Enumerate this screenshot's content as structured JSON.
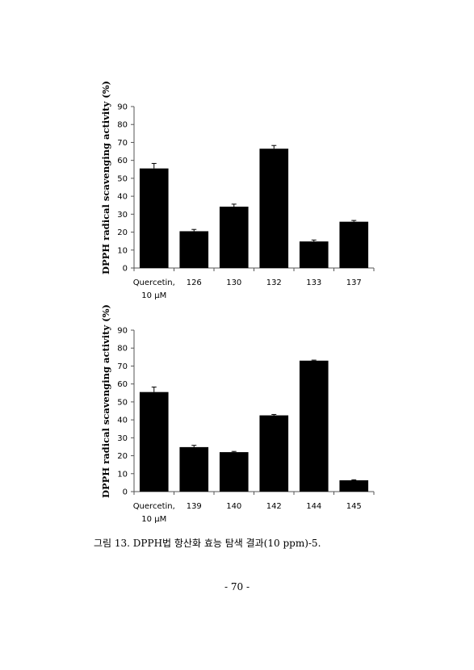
{
  "chart_data": [
    {
      "type": "bar",
      "title": "",
      "xlabel": "",
      "ylabel": "DPPH radical scavenging activity (%)",
      "ylim": [
        0,
        90
      ],
      "yticks": [
        0,
        10,
        20,
        30,
        40,
        50,
        60,
        70,
        80,
        90
      ],
      "categories": [
        [
          "Quercetin,",
          "10 μM"
        ],
        [
          "126"
        ],
        [
          "130"
        ],
        [
          "132"
        ],
        [
          "133"
        ],
        [
          "137"
        ]
      ],
      "values": [
        55.5,
        20.5,
        34.2,
        66.5,
        14.8,
        25.8
      ],
      "errors": [
        2.8,
        1.0,
        1.4,
        1.8,
        0.8,
        0.7
      ],
      "bar_color": "#000000",
      "grid": false,
      "legend": "none"
    },
    {
      "type": "bar",
      "title": "",
      "xlabel": "",
      "ylabel": "DPPH radical scavenging activity (%)",
      "ylim": [
        0,
        90
      ],
      "yticks": [
        0,
        10,
        20,
        30,
        40,
        50,
        60,
        70,
        80,
        90
      ],
      "categories": [
        [
          "Quercetin,",
          "10 μM"
        ],
        [
          "139"
        ],
        [
          "140"
        ],
        [
          "142"
        ],
        [
          "144"
        ],
        [
          "145"
        ]
      ],
      "values": [
        55.5,
        24.8,
        22.0,
        42.5,
        73.0,
        6.3
      ],
      "errors": [
        2.8,
        1.0,
        0.4,
        0.5,
        0.3,
        0.3
      ],
      "bar_color": "#000000",
      "grid": false,
      "legend": "none"
    }
  ],
  "caption": "그림 13. DPPH법 항산화 효능 탐색 결과(10 ppm)-5.",
  "page_number": "- 70 -"
}
